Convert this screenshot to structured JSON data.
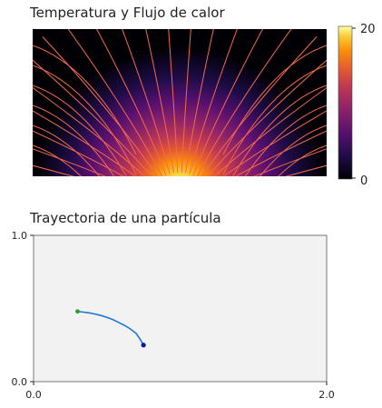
{
  "chart_data": [
    {
      "type": "heatmap",
      "title": "Temperatura y Flujo de calor",
      "description_of_field": "",
      "colormap": "inferno",
      "colorbar": {
        "min": 0,
        "max": 20,
        "ticks": [
          "0",
          "20"
        ]
      },
      "streamlines": {
        "color": "#f26b4a"
      }
    },
    {
      "type": "line",
      "title": "Trayectoria de una partícula",
      "xlim": [
        0.0,
        2.0
      ],
      "ylim": [
        0.0,
        1.0
      ],
      "xticks": [
        "0.0",
        "2.0"
      ],
      "yticks": [
        "0.0",
        "1.0"
      ],
      "background": "#f2f2f2",
      "line_color": "#1f77d0",
      "start_point": {
        "x": 0.3,
        "y": 0.48,
        "color": "#2ca02c"
      },
      "end_point": {
        "x": 0.75,
        "y": 0.25,
        "color": "#0a1a9a"
      },
      "series": [
        {
          "x": [
            0.3,
            0.34,
            0.38,
            0.42,
            0.46,
            0.5,
            0.54,
            0.58,
            0.62,
            0.66,
            0.7,
            0.73,
            0.75
          ],
          "y": [
            0.48,
            0.475,
            0.47,
            0.462,
            0.452,
            0.44,
            0.425,
            0.405,
            0.385,
            0.36,
            0.33,
            0.285,
            0.25
          ]
        }
      ]
    }
  ]
}
